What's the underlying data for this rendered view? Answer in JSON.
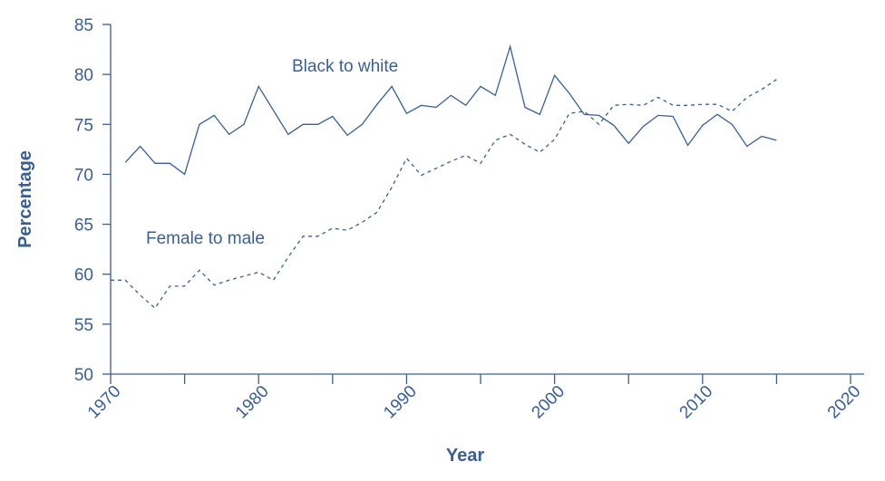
{
  "chart_data": {
    "type": "line",
    "title": "",
    "xlabel": "Year",
    "ylabel": "Percentage",
    "xlim": [
      1970,
      2020
    ],
    "ylim": [
      50,
      85
    ],
    "xticks": [
      "1970",
      "1980",
      "1990",
      "2000",
      "2010",
      "2020"
    ],
    "yticks": [
      "50",
      "55",
      "60",
      "65",
      "70",
      "75",
      "80",
      "85"
    ],
    "grid": false,
    "legend": "none",
    "colors": {
      "line": "#3a5f93",
      "text": "#3a5f93",
      "axis": "#3a5f93"
    },
    "annotations": [
      {
        "text": "Black to white",
        "series": "solid"
      },
      {
        "text": "Female to male",
        "series": "dashed"
      }
    ],
    "series": [
      {
        "style": "solid",
        "x": [
          1971,
          1972,
          1973,
          1974,
          1975,
          1976,
          1977,
          1978,
          1979,
          1980,
          1981,
          1982,
          1983,
          1984,
          1985,
          1986,
          1987,
          1988,
          1989,
          1990,
          1991,
          1992,
          1993,
          1994,
          1995,
          1996,
          1997,
          1998,
          1999,
          2000,
          2001,
          2002,
          2003,
          2004,
          2005,
          2006,
          2007,
          2008,
          2009,
          2010,
          2011,
          2012,
          2013,
          2014,
          2015
        ],
        "values": [
          71.2,
          72.8,
          71.1,
          71.1,
          70.0,
          75.0,
          75.9,
          74.0,
          75.0,
          78.8,
          76.4,
          74.0,
          75.0,
          75.0,
          75.8,
          73.9,
          75.0,
          77.0,
          78.8,
          76.1,
          76.9,
          76.7,
          77.9,
          76.9,
          78.8,
          77.9,
          82.8,
          76.7,
          76.0,
          79.9,
          78.1,
          76.0,
          75.9,
          74.9,
          73.1,
          74.8,
          75.9,
          75.8,
          72.9,
          74.9,
          76.0,
          75.0,
          72.8,
          73.8,
          73.4
        ]
      },
      {
        "style": "dashed",
        "x": [
          1970,
          1971,
          1972,
          1973,
          1974,
          1975,
          1976,
          1977,
          1978,
          1979,
          1980,
          1981,
          1982,
          1983,
          1984,
          1985,
          1986,
          1987,
          1988,
          1989,
          1990,
          1991,
          1992,
          1993,
          1994,
          1995,
          1996,
          1997,
          1998,
          1999,
          2000,
          2001,
          2002,
          2003,
          2004,
          2005,
          2006,
          2007,
          2008,
          2009,
          2010,
          2011,
          2012,
          2013,
          2014,
          2015
        ],
        "values": [
          59.4,
          59.4,
          57.9,
          56.6,
          58.8,
          58.8,
          60.4,
          58.9,
          59.4,
          59.8,
          60.2,
          59.4,
          61.7,
          63.8,
          63.8,
          64.6,
          64.4,
          65.2,
          66.2,
          68.7,
          71.6,
          69.9,
          70.6,
          71.3,
          71.9,
          71.1,
          73.4,
          74.0,
          73.0,
          72.2,
          73.5,
          76.1,
          76.3,
          75.0,
          76.9,
          77.0,
          76.9,
          77.7,
          76.9,
          76.9,
          77.0,
          77.0,
          76.3,
          77.7,
          78.5,
          79.5
        ]
      }
    ]
  }
}
